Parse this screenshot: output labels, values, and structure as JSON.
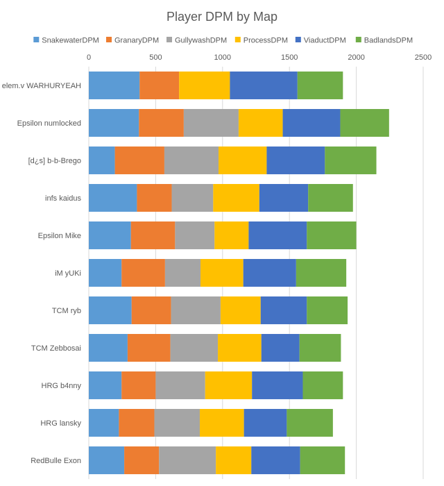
{
  "chart_data": {
    "type": "bar",
    "orientation": "horizontal",
    "stacked": true,
    "title": "Player DPM by Map",
    "xlabel": "",
    "ylabel": "",
    "xlim": [
      0,
      2500
    ],
    "xticks": [
      0,
      500,
      1000,
      1500,
      2000,
      2500
    ],
    "grid": true,
    "legend_position": "top",
    "categories": [
      "elem.v WARHURYEAH",
      "Epsilon numlocked",
      "[d¿s] b-b-Brego",
      "infs kaidus",
      "Epsilon Mike",
      "iM yUKi",
      "TCM ryb",
      "TCM Zebbosai",
      "HRG b4nny",
      "HRG lansky",
      "RedBulle Exon"
    ],
    "series": [
      {
        "name": "SnakewaterDPM",
        "color": "#5b9bd5",
        "values": [
          380,
          375,
          195,
          360,
          315,
          245,
          320,
          290,
          245,
          225,
          265
        ]
      },
      {
        "name": "GranaryDPM",
        "color": "#ed7d31",
        "values": [
          295,
          335,
          370,
          260,
          330,
          325,
          295,
          320,
          255,
          265,
          260
        ]
      },
      {
        "name": "GullywashDPM",
        "color": "#a5a5a5",
        "values": [
          0,
          410,
          405,
          310,
          295,
          265,
          370,
          355,
          370,
          340,
          425
        ]
      },
      {
        "name": "ProcessDPM",
        "color": "#ffc000",
        "values": [
          380,
          330,
          360,
          345,
          255,
          320,
          300,
          325,
          350,
          330,
          265
        ]
      },
      {
        "name": "ViaductDPM",
        "color": "#4472c4",
        "values": [
          505,
          430,
          435,
          365,
          435,
          395,
          345,
          285,
          380,
          320,
          365
        ]
      },
      {
        "name": "BadlandsDPM",
        "color": "#70ad47",
        "values": [
          340,
          365,
          385,
          335,
          370,
          375,
          305,
          310,
          300,
          345,
          335
        ]
      }
    ]
  }
}
